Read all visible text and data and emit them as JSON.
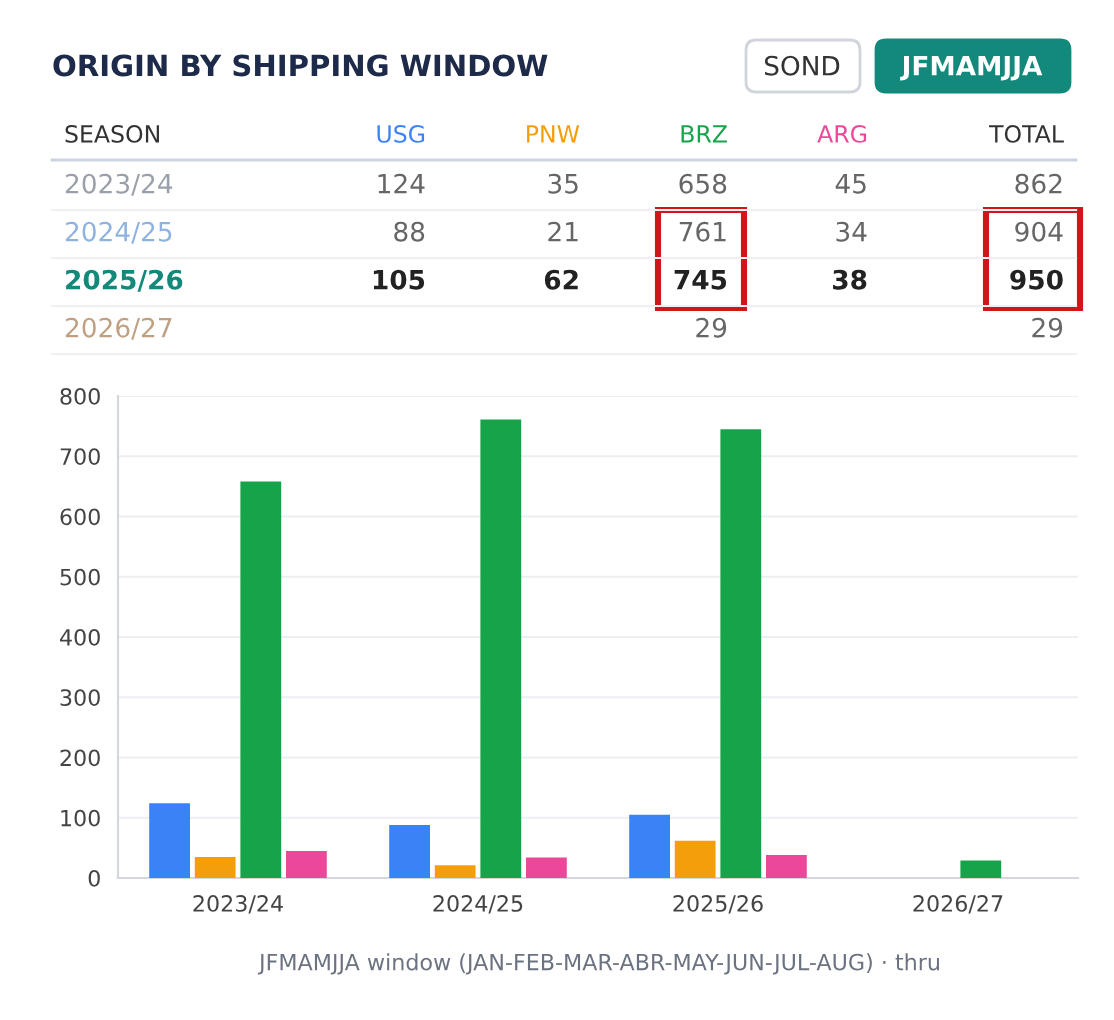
{
  "chart_data": [
    {
      "type": "other",
      "title": "ORIGIN BY SHIPPING WINDOW",
      "categories": [
        "2023/24",
        "2024/25",
        "2025/26",
        "2026/27"
      ],
      "series": [
        {
          "name": "USG",
          "color": "#3b82f6",
          "values": [
            124,
            88,
            105,
            null
          ]
        },
        {
          "name": "PNW",
          "color": "#f59e0b",
          "values": [
            35,
            21,
            62,
            null
          ]
        },
        {
          "name": "BRZ",
          "color": "#16a34a",
          "values": [
            658,
            761,
            745,
            29
          ]
        },
        {
          "name": "ARG",
          "color": "#ec4899",
          "values": [
            45,
            34,
            38,
            null
          ]
        }
      ],
      "totals": [
        "862",
        "904",
        "950",
        "29"
      ],
      "data_labels": true,
      "annotations": [
        "SEASON",
        "TOTAL",
        "SOND",
        "JFMAMJJA"
      ]
    },
    {
      "type": "bar",
      "categories": [
        "2023/24",
        "2024/25",
        "2025/26",
        "2026/27"
      ],
      "series": [
        {
          "color": "#3b82f6",
          "values": [
            124,
            88,
            105,
            null
          ]
        },
        {
          "color": "#f59e0b",
          "values": [
            35,
            21,
            62,
            null
          ]
        },
        {
          "color": "#16a34a",
          "values": [
            658,
            761,
            745,
            29
          ]
        },
        {
          "color": "#ec4899",
          "values": [
            45,
            34,
            38,
            null
          ]
        }
      ],
      "ylim": [
        0,
        800
      ],
      "yticks": [
        0,
        100,
        200,
        300,
        400,
        500,
        600,
        700,
        800
      ],
      "grid": "y",
      "legend": false,
      "annotations": [
        "JFMAMJJA window (JAN-FEB-MAR-ABR-MAY-JUN-JUL-AUG) · thru"
      ]
    }
  ]
}
